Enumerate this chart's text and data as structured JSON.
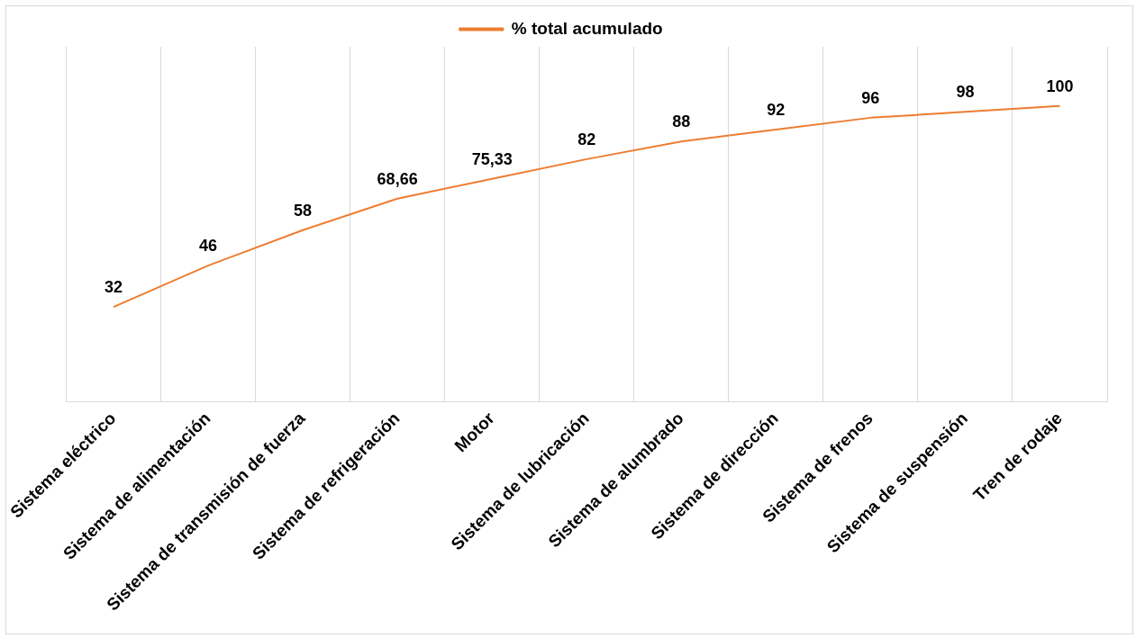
{
  "chart_data": {
    "type": "line",
    "categories": [
      "Sistema eléctrico",
      "Sistema de alimentación",
      "Sistema de transmisión de fuerza",
      "Sistema de refrigeración",
      "Motor",
      "Sistema de lubricación",
      "Sistema de alumbrado",
      "Sistema de dirección",
      "Sistema de frenos",
      "Sistema de suspensión",
      "Tren de rodaje"
    ],
    "series": [
      {
        "name": "% total acumulado",
        "color": "#ed7d31",
        "values": [
          32,
          46,
          58,
          68.66,
          75.33,
          82,
          88,
          92,
          96,
          98,
          100
        ],
        "value_labels": [
          "32",
          "46",
          "58",
          "68,66",
          "75,33",
          "82",
          "88",
          "92",
          "96",
          "98",
          "100"
        ]
      }
    ],
    "ylim": [
      0,
      120
    ],
    "tick_labels": "x",
    "grid": "x",
    "legend": "top",
    "marker": "none",
    "line_style": "solid"
  }
}
